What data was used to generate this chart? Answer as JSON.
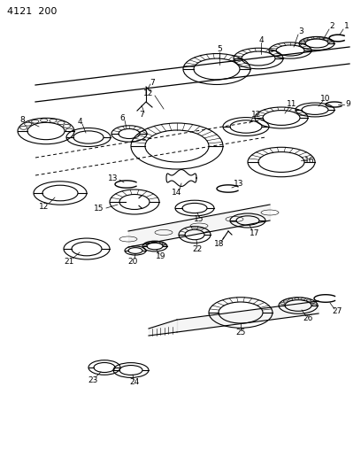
{
  "title": "4121  200",
  "bg_color": "#ffffff",
  "line_color": "#000000",
  "fig_width": 4.08,
  "fig_height": 5.33,
  "dpi": 100
}
